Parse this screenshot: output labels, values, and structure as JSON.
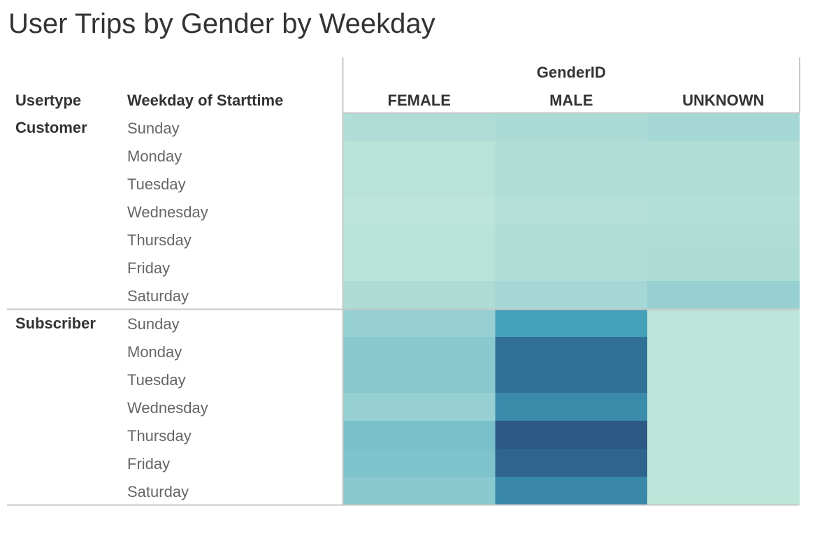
{
  "title": "User Trips by Gender by Weekday",
  "chart_data": {
    "type": "heatmap",
    "title": "User Trips by Gender by Weekday",
    "row_headers": [
      "Usertype",
      "Weekday of Starttime"
    ],
    "column_group_label": "GenderID",
    "columns": [
      "FEMALE",
      "MALE",
      "UNKNOWN"
    ],
    "color_scale": {
      "low": "#bce4d8",
      "high": "#2c5985"
    },
    "groups": [
      {
        "name": "Customer",
        "rows": [
          {
            "label": "Sunday",
            "intensity": [
              0.06,
              0.09,
              0.12
            ]
          },
          {
            "label": "Monday",
            "intensity": [
              0.01,
              0.06,
              0.06
            ]
          },
          {
            "label": "Tuesday",
            "intensity": [
              0.01,
              0.06,
              0.06
            ]
          },
          {
            "label": "Wednesday",
            "intensity": [
              0.0,
              0.04,
              0.05
            ]
          },
          {
            "label": "Thursday",
            "intensity": [
              0.01,
              0.06,
              0.07
            ]
          },
          {
            "label": "Friday",
            "intensity": [
              0.01,
              0.07,
              0.08
            ]
          },
          {
            "label": "Saturday",
            "intensity": [
              0.08,
              0.12,
              0.2
            ]
          }
        ]
      },
      {
        "name": "Subscriber",
        "rows": [
          {
            "label": "Sunday",
            "intensity": [
              0.2,
              0.5,
              0.0
            ]
          },
          {
            "label": "Monday",
            "intensity": [
              0.26,
              0.82,
              0.0
            ]
          },
          {
            "label": "Tuesday",
            "intensity": [
              0.26,
              0.82,
              0.0
            ]
          },
          {
            "label": "Wednesday",
            "intensity": [
              0.2,
              0.64,
              0.0
            ]
          },
          {
            "label": "Thursday",
            "intensity": [
              0.32,
              1.0,
              0.0
            ]
          },
          {
            "label": "Friday",
            "intensity": [
              0.3,
              0.92,
              0.0
            ]
          },
          {
            "label": "Saturday",
            "intensity": [
              0.26,
              0.66,
              0.0
            ]
          }
        ]
      }
    ]
  }
}
